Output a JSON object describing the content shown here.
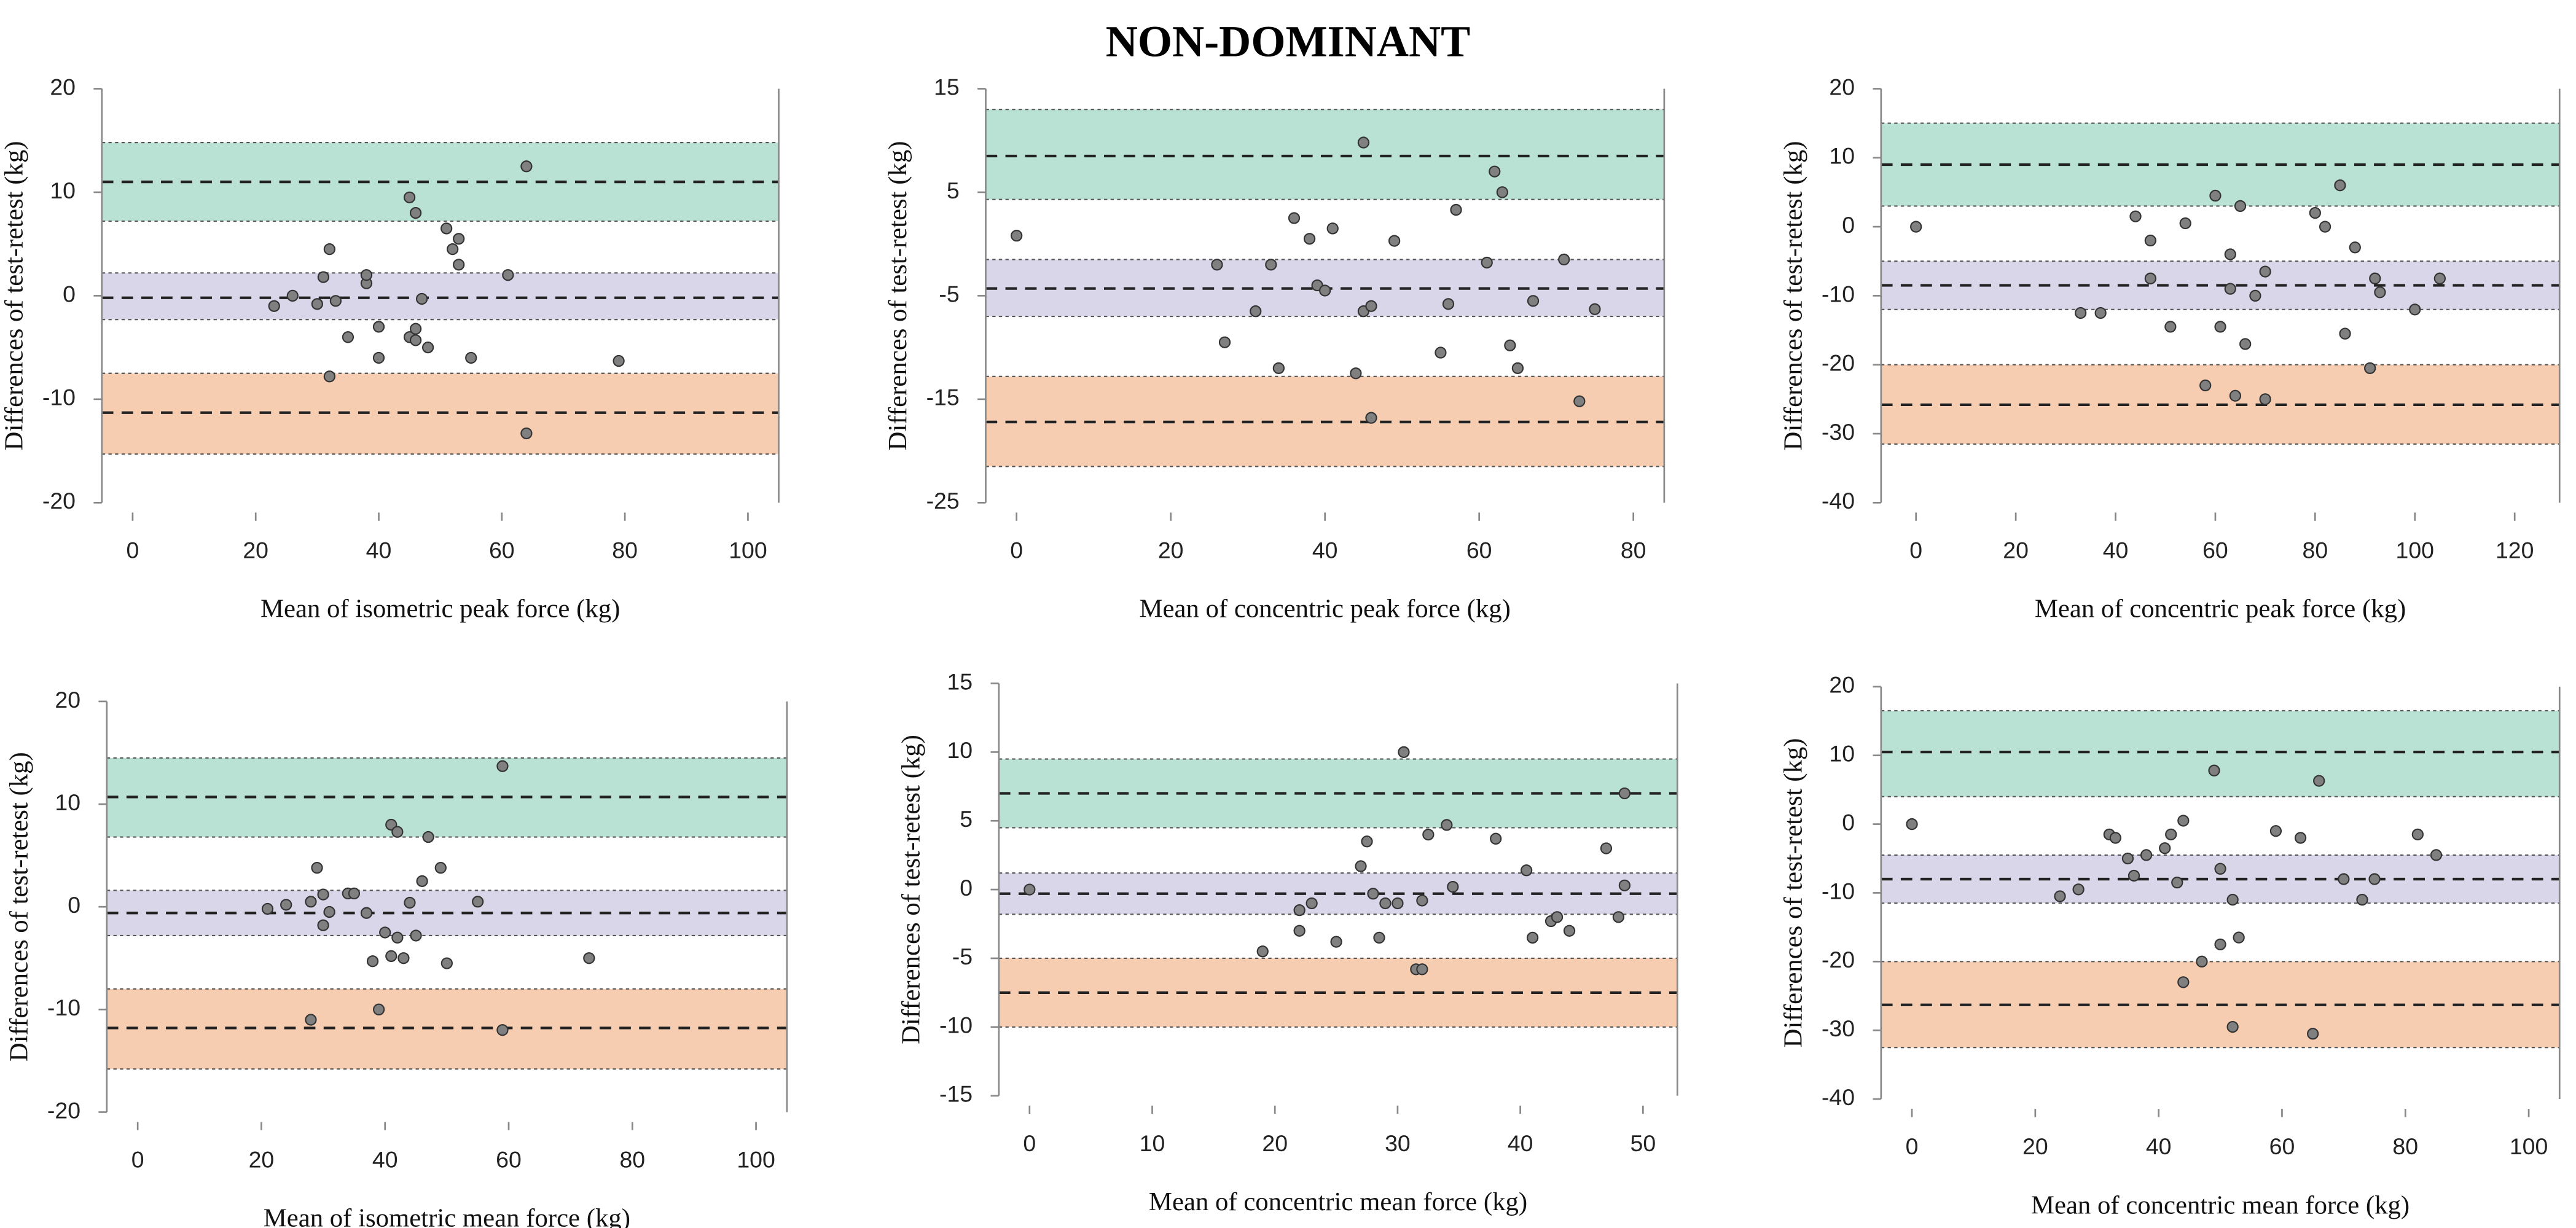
{
  "title": "NON-DOMINANT",
  "chart_data": [
    {
      "type": "scatter",
      "x_label": "Mean of isometric peak force (kg)",
      "y_label": "Differences of test-retest (kg)",
      "xlim": [
        -5,
        105
      ],
      "xticks": [
        0,
        20,
        40,
        60,
        80,
        100
      ],
      "ylim": [
        -20,
        20
      ],
      "yticks": [
        -20,
        -10,
        0,
        10,
        20
      ],
      "color": "#808080",
      "bands": [
        {
          "value": 11,
          "lower": 7.2,
          "upper": 14.8,
          "color": "#b9e2d5"
        },
        {
          "value": -0.2,
          "lower": -2.3,
          "upper": 2.2,
          "color": "#d9d6ea"
        },
        {
          "value": -11.3,
          "lower": -15.3,
          "upper": -7.5,
          "color": "#f6cdb1"
        }
      ],
      "x": [
        23,
        26,
        30,
        31,
        32,
        32,
        33,
        35,
        38,
        38,
        40,
        40,
        45,
        45,
        46,
        46,
        46,
        47,
        48,
        51,
        52,
        53,
        53,
        55,
        61,
        64,
        64,
        79
      ],
      "values": [
        -1,
        0,
        -0.8,
        1.8,
        4.5,
        -7.8,
        -0.5,
        -4,
        1.2,
        2,
        -3,
        -6,
        9.5,
        -4,
        -3.2,
        -4.3,
        8,
        -0.3,
        -5,
        6.5,
        4.5,
        3,
        5.5,
        -6,
        2,
        12.5,
        -13.3,
        -6.3
      ]
    },
    {
      "type": "scatter",
      "x_label": "Mean of concentric peak force (kg)",
      "y_label": "Differences of test-retest (kg)",
      "xlim": [
        -4,
        84
      ],
      "xticks": [
        0,
        20,
        40,
        60,
        80
      ],
      "ylim": [
        -25,
        15
      ],
      "yticks": [
        -25,
        -15,
        -5,
        5,
        15
      ],
      "color": "#808080",
      "bands": [
        {
          "value": 8.5,
          "lower": 4.3,
          "upper": 13,
          "color": "#b9e2d5"
        },
        {
          "value": -4.3,
          "lower": -7,
          "upper": -1.5,
          "color": "#d9d6ea"
        },
        {
          "value": -17.2,
          "lower": -21.5,
          "upper": -12.8,
          "color": "#f6cdb1"
        }
      ],
      "x": [
        0,
        26,
        27,
        31,
        33,
        34,
        36,
        38,
        39,
        40,
        41,
        44,
        45,
        45,
        46,
        46,
        49,
        55,
        56,
        57,
        61,
        62,
        63,
        64,
        65,
        67,
        71,
        73,
        75
      ],
      "values": [
        0.8,
        -2,
        -9.5,
        -6.5,
        -2,
        -12,
        2.5,
        0.5,
        -4,
        -4.5,
        1.5,
        -12.5,
        -6.5,
        9.8,
        -6,
        -16.8,
        0.3,
        -10.5,
        -5.8,
        3.3,
        -1.8,
        7,
        5,
        -9.8,
        -12,
        -5.5,
        -1.5,
        -15.2,
        -6.3
      ]
    },
    {
      "type": "scatter",
      "x_label": "Mean of concentric peak force (kg)",
      "y_label": "Differences of test-retest (kg)",
      "xlim": [
        -7,
        129
      ],
      "xticks": [
        0,
        20,
        40,
        60,
        80,
        100,
        120
      ],
      "ylim": [
        -40,
        20
      ],
      "yticks": [
        -40,
        -30,
        -20,
        -10,
        0,
        10,
        20
      ],
      "color": "#808080",
      "bands": [
        {
          "value": 9,
          "lower": 3,
          "upper": 15,
          "color": "#b9e2d5"
        },
        {
          "value": -8.5,
          "lower": -12,
          "upper": -5,
          "color": "#d9d6ea"
        },
        {
          "value": -25.8,
          "lower": -31.5,
          "upper": -20,
          "color": "#f6cdb1"
        }
      ],
      "x": [
        0,
        33,
        37,
        44,
        47,
        47,
        51,
        54,
        58,
        60,
        61,
        63,
        63,
        64,
        65,
        66,
        68,
        70,
        70,
        80,
        82,
        85,
        86,
        88,
        91,
        92,
        93,
        100,
        105
      ],
      "values": [
        0,
        -12.5,
        -12.5,
        1.5,
        -7.5,
        -2,
        -14.5,
        0.5,
        -23,
        4.5,
        -14.5,
        -9,
        -4,
        -24.5,
        3,
        -17,
        -10,
        -6.5,
        -25,
        2,
        0,
        6,
        -15.5,
        -3,
        -20.5,
        -7.5,
        -9.5,
        -12,
        -7.5
      ]
    },
    {
      "type": "scatter",
      "x_label": "Mean of isometric mean force (kg)",
      "y_label": "Differences of test-retest (kg)",
      "xlim": [
        -5,
        105
      ],
      "xticks": [
        0,
        20,
        40,
        60,
        80,
        100
      ],
      "ylim": [
        -20,
        20
      ],
      "yticks": [
        -20,
        -10,
        0,
        10,
        20
      ],
      "color": "#808080",
      "bands": [
        {
          "value": 10.7,
          "lower": 6.8,
          "upper": 14.5,
          "color": "#b9e2d5"
        },
        {
          "value": -0.6,
          "lower": -2.8,
          "upper": 1.6,
          "color": "#d9d6ea"
        },
        {
          "value": -11.8,
          "lower": -15.8,
          "upper": -8,
          "color": "#f6cdb1"
        }
      ],
      "x": [
        21,
        24,
        28,
        28,
        29,
        30,
        30,
        31,
        34,
        35,
        37,
        38,
        39,
        40,
        41,
        41,
        42,
        42,
        43,
        44,
        45,
        46,
        47,
        49,
        50,
        55,
        59,
        59,
        73
      ],
      "values": [
        -0.2,
        0.2,
        0.5,
        -11,
        3.8,
        1.2,
        -1.8,
        -0.5,
        1.3,
        1.3,
        -0.6,
        -5.3,
        -10,
        -2.5,
        -4.8,
        8,
        7.3,
        -3,
        -5,
        0.4,
        -2.8,
        2.5,
        6.8,
        3.8,
        -5.5,
        0.5,
        13.7,
        -12,
        -5
      ]
    },
    {
      "type": "scatter",
      "x_label": "Mean of concentric mean force (kg)",
      "y_label": "Differences of test-retest (kg)",
      "xlim": [
        -2.5,
        52.8
      ],
      "xticks": [
        0,
        10,
        20,
        30,
        40,
        50
      ],
      "ylim": [
        -15,
        15
      ],
      "yticks": [
        -15,
        -10,
        -5,
        0,
        5,
        10,
        15
      ],
      "color": "#808080",
      "bands": [
        {
          "value": 7,
          "lower": 4.5,
          "upper": 9.5,
          "color": "#b9e2d5"
        },
        {
          "value": -0.3,
          "lower": -1.8,
          "upper": 1.2,
          "color": "#d9d6ea"
        },
        {
          "value": -7.5,
          "lower": -10,
          "upper": -5,
          "color": "#f6cdb1"
        }
      ],
      "x": [
        0,
        19,
        22,
        22,
        23,
        25,
        27,
        27.5,
        28,
        28.5,
        29,
        30,
        30.5,
        31.5,
        32,
        32.5,
        32,
        34,
        34.5,
        38,
        40.5,
        41,
        42.5,
        43,
        44,
        47,
        48,
        48.5,
        48.5
      ],
      "values": [
        0,
        -4.5,
        -1.5,
        -3,
        -1,
        -3.8,
        1.7,
        3.5,
        -0.3,
        -3.5,
        -1,
        -1,
        10,
        -5.8,
        -5.8,
        4,
        -0.8,
        4.7,
        0.2,
        3.7,
        1.4,
        -3.5,
        -2.3,
        -2,
        -3,
        3,
        -2,
        7,
        0.3
      ]
    },
    {
      "type": "scatter",
      "x_label": "Mean of concentric mean force (kg)",
      "y_label": "Differences of test-retest (kg)",
      "xlim": [
        -5,
        105
      ],
      "xticks": [
        0,
        20,
        40,
        60,
        80,
        100
      ],
      "ylim": [
        -40,
        20
      ],
      "yticks": [
        -40,
        -30,
        -20,
        -10,
        0,
        10,
        20
      ],
      "color": "#808080",
      "bands": [
        {
          "value": 10.5,
          "lower": 4,
          "upper": 16.5,
          "color": "#b9e2d5"
        },
        {
          "value": -8,
          "lower": -11.5,
          "upper": -4.5,
          "color": "#d9d6ea"
        },
        {
          "value": -26.3,
          "lower": -32.5,
          "upper": -20,
          "color": "#f6cdb1"
        }
      ],
      "x": [
        0,
        24,
        27,
        32,
        33,
        35,
        36,
        38,
        41,
        42,
        43,
        44,
        44,
        47,
        49,
        50,
        50,
        52,
        52,
        53,
        59,
        63,
        65,
        66,
        70,
        73,
        75,
        82,
        85
      ],
      "values": [
        0,
        -10.5,
        -9.5,
        -1.5,
        -2,
        -5,
        -7.5,
        -4.5,
        -3.5,
        -1.5,
        -8.5,
        0.5,
        -23,
        -20,
        7.8,
        -17.5,
        -6.5,
        -11,
        -29.5,
        -16.5,
        -1,
        -2,
        -30.5,
        6.3,
        -8,
        -11,
        -8,
        -1.5,
        -4.5
      ]
    }
  ]
}
